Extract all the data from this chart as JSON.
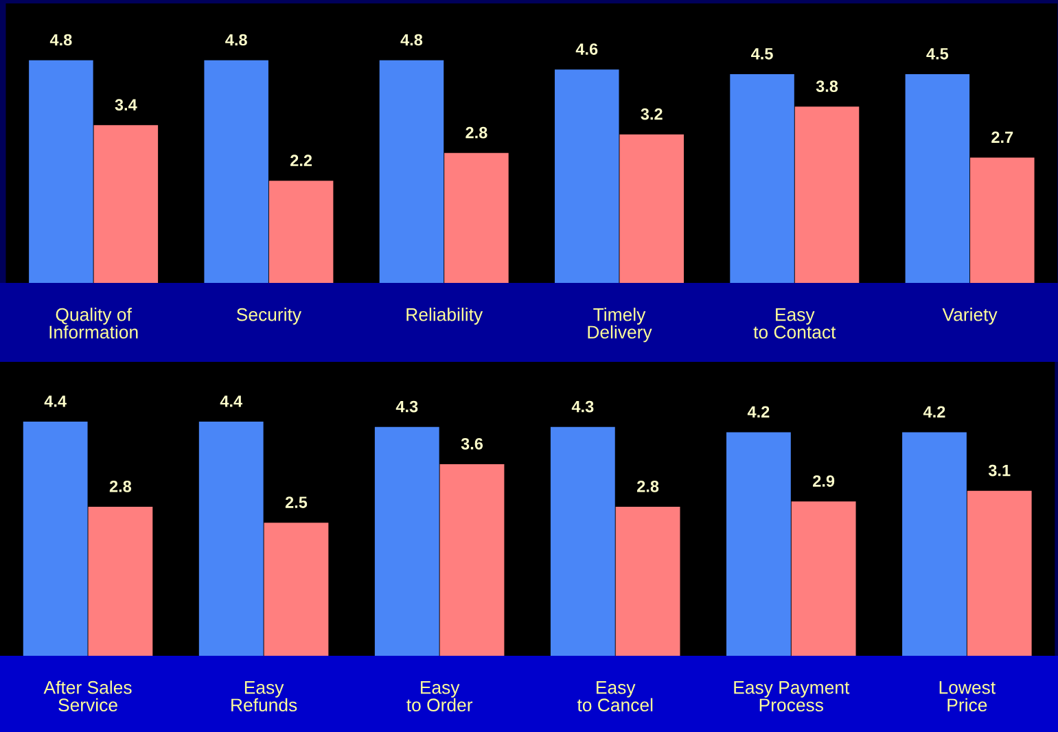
{
  "chart_data": [
    {
      "type": "bar",
      "categories": [
        "Quality of\nInformation",
        "Security",
        "Reliability",
        "Timely\nDelivery",
        "Easy\nto Contact",
        "Variety"
      ],
      "series": [
        {
          "color": "#4a86f7",
          "values": [
            4.8,
            4.8,
            4.8,
            4.6,
            4.5,
            4.5
          ]
        },
        {
          "color": "#ff7f7f",
          "values": [
            3.4,
            2.2,
            2.8,
            3.2,
            3.8,
            2.7
          ]
        }
      ],
      "data_labels": true,
      "grid": false,
      "legend": false
    },
    {
      "type": "bar",
      "categories": [
        "After Sales\nService",
        "Easy\nRefunds",
        "Easy\nto Order",
        "Easy\nto Cancel",
        "Easy Payment\nProcess",
        "Lowest\nPrice"
      ],
      "series": [
        {
          "color": "#4a86f7",
          "values": [
            4.4,
            4.4,
            4.3,
            4.3,
            4.2,
            4.2
          ]
        },
        {
          "color": "#ff7f7f",
          "values": [
            2.8,
            2.5,
            3.6,
            2.8,
            2.9,
            3.1
          ]
        }
      ],
      "data_labels": true,
      "grid": false,
      "legend": false
    }
  ]
}
